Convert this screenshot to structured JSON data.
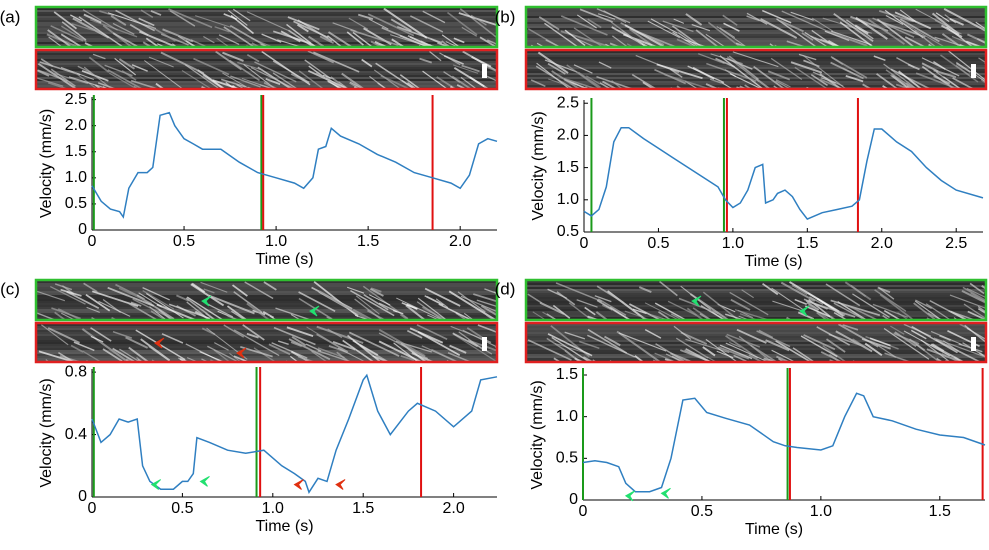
{
  "chart_data": [
    {
      "type": "line",
      "panel": "(a)",
      "xlabel": "Time (s)",
      "ylabel": "Velocity (mm/s)",
      "color": "#2f7fc1",
      "x": [
        0,
        0.05,
        0.1,
        0.15,
        0.17,
        0.2,
        0.25,
        0.3,
        0.33,
        0.37,
        0.42,
        0.45,
        0.5,
        0.55,
        0.6,
        0.7,
        0.8,
        0.9,
        1.0,
        1.1,
        1.15,
        1.2,
        1.23,
        1.27,
        1.3,
        1.35,
        1.45,
        1.55,
        1.65,
        1.75,
        1.85,
        1.95,
        2.0,
        2.05,
        2.1,
        2.15,
        2.2
      ],
      "values": [
        0.85,
        0.55,
        0.4,
        0.35,
        0.25,
        0.8,
        1.1,
        1.1,
        1.2,
        2.2,
        2.25,
        2.0,
        1.75,
        1.65,
        1.55,
        1.55,
        1.3,
        1.1,
        1.0,
        0.9,
        0.8,
        1.0,
        1.55,
        1.6,
        1.95,
        1.8,
        1.65,
        1.45,
        1.3,
        1.1,
        1.0,
        0.9,
        0.8,
        1.05,
        1.65,
        1.75,
        1.7
      ],
      "xlim": [
        0,
        2.2
      ],
      "ylim": [
        0,
        2.55
      ],
      "xticks": [
        0,
        0.5,
        {
          "value": 1,
          "label": "1.0"
        },
        1.5,
        {
          "value": 2,
          "label": "2.0"
        }
      ],
      "yticks": [
        0,
        0.5,
        {
          "value": 1,
          "label": "1.0"
        },
        1.5,
        {
          "value": 2,
          "label": "2.0"
        },
        2.5
      ],
      "markers": [
        {
          "x": 0.01,
          "color": "#1a9a1a"
        },
        {
          "x": 0.92,
          "color": "#1a9a1a"
        },
        {
          "x": 0.93,
          "color": "#e01010"
        },
        {
          "x": 1.85,
          "color": "#e01010"
        }
      ],
      "arrows": []
    },
    {
      "type": "line",
      "panel": "(b)",
      "xlabel": "Time (s)",
      "ylabel": "Velocity (mm/s)",
      "color": "#2f7fc1",
      "x": [
        0,
        0.05,
        0.1,
        0.15,
        0.2,
        0.25,
        0.3,
        0.4,
        0.5,
        0.6,
        0.7,
        0.8,
        0.9,
        0.95,
        1.0,
        1.05,
        1.1,
        1.15,
        1.2,
        1.22,
        1.27,
        1.3,
        1.35,
        1.4,
        1.45,
        1.5,
        1.6,
        1.7,
        1.8,
        1.85,
        1.9,
        1.95,
        2.0,
        2.1,
        2.2,
        2.3,
        2.4,
        2.5,
        2.68
      ],
      "values": [
        0.82,
        0.75,
        0.85,
        1.2,
        1.9,
        2.12,
        2.12,
        1.95,
        1.8,
        1.65,
        1.5,
        1.35,
        1.2,
        1.0,
        0.88,
        0.95,
        1.15,
        1.5,
        1.55,
        0.95,
        1.0,
        1.1,
        1.15,
        1.05,
        0.85,
        0.7,
        0.8,
        0.85,
        0.9,
        1.0,
        1.6,
        2.1,
        2.1,
        1.9,
        1.75,
        1.5,
        1.3,
        1.15,
        1.03
      ],
      "xlim": [
        0,
        2.68
      ],
      "ylim": [
        0.5,
        2.55
      ],
      "xticks": [
        0,
        0.5,
        {
          "value": 1,
          "label": "1.0"
        },
        1.5,
        {
          "value": 2,
          "label": "2.0"
        },
        2.5
      ],
      "yticks": [
        0.5,
        {
          "value": 1,
          "label": "1.0"
        },
        1.5,
        {
          "value": 2,
          "label": "2.0"
        },
        2.5
      ],
      "markers": [
        {
          "x": 0.05,
          "color": "#1a9a1a"
        },
        {
          "x": 0.94,
          "color": "#1a9a1a"
        },
        {
          "x": 0.96,
          "color": "#e01010"
        },
        {
          "x": 1.84,
          "color": "#e01010"
        }
      ],
      "arrows": []
    },
    {
      "type": "line",
      "panel": "(c)",
      "xlabel": "Time (s)",
      "ylabel": "Velocity (mm/s)",
      "color": "#2f7fc1",
      "x": [
        0,
        0.05,
        0.1,
        0.15,
        0.2,
        0.25,
        0.28,
        0.32,
        0.38,
        0.45,
        0.5,
        0.53,
        0.56,
        0.58,
        0.65,
        0.75,
        0.85,
        0.95,
        1.05,
        1.12,
        1.18,
        1.2,
        1.25,
        1.3,
        1.35,
        1.42,
        1.5,
        1.52,
        1.58,
        1.65,
        1.75,
        1.8,
        1.9,
        2.0,
        2.1,
        2.15,
        2.24
      ],
      "values": [
        0.5,
        0.35,
        0.4,
        0.5,
        0.48,
        0.5,
        0.2,
        0.1,
        0.05,
        0.05,
        0.1,
        0.1,
        0.15,
        0.38,
        0.35,
        0.3,
        0.28,
        0.3,
        0.2,
        0.15,
        0.1,
        0.03,
        0.12,
        0.1,
        0.3,
        0.5,
        0.75,
        0.78,
        0.55,
        0.4,
        0.55,
        0.6,
        0.55,
        0.45,
        0.55,
        0.75,
        0.77
      ],
      "xlim": [
        0,
        2.24
      ],
      "ylim": [
        0,
        0.82
      ],
      "xticks": [
        0,
        0.5,
        {
          "value": 1,
          "label": "1.0"
        },
        1.5,
        {
          "value": 2,
          "label": "2.0"
        }
      ],
      "yticks": [
        0,
        0.4,
        0.8
      ],
      "markers": [
        {
          "x": 0.01,
          "color": "#1a9a1a"
        },
        {
          "x": 0.91,
          "color": "#1a9a1a"
        },
        {
          "x": 0.93,
          "color": "#e01010"
        },
        {
          "x": 1.82,
          "color": "#e01010"
        }
      ],
      "arrows": [
        {
          "x": 0.33,
          "y": 0.08,
          "color": "#22e070"
        },
        {
          "x": 0.6,
          "y": 0.1,
          "color": "#22e070"
        },
        {
          "x": 1.12,
          "y": 0.08,
          "color": "#e03010"
        },
        {
          "x": 1.35,
          "y": 0.08,
          "color": "#e03010"
        }
      ]
    },
    {
      "type": "line",
      "panel": "(d)",
      "xlabel": "Time (s)",
      "ylabel": "Velocity (mm/s)",
      "color": "#2f7fc1",
      "x": [
        0,
        0.05,
        0.1,
        0.15,
        0.18,
        0.22,
        0.28,
        0.33,
        0.37,
        0.42,
        0.47,
        0.52,
        0.6,
        0.7,
        0.8,
        0.85,
        0.9,
        1.0,
        1.05,
        1.1,
        1.15,
        1.18,
        1.22,
        1.3,
        1.4,
        1.5,
        1.6,
        1.69
      ],
      "values": [
        0.45,
        0.47,
        0.45,
        0.4,
        0.2,
        0.1,
        0.1,
        0.15,
        0.5,
        1.2,
        1.22,
        1.05,
        0.98,
        0.9,
        0.7,
        0.65,
        0.63,
        0.6,
        0.65,
        1.0,
        1.28,
        1.25,
        1.0,
        0.95,
        0.85,
        0.78,
        0.75,
        0.66
      ],
      "xlim": [
        0,
        1.69
      ],
      "ylim": [
        0,
        1.56
      ],
      "xticks": [
        0,
        0.5,
        {
          "value": 1,
          "label": "1.0"
        },
        1.5
      ],
      "yticks": [
        0,
        0.5,
        {
          "value": 1,
          "label": "1.0"
        },
        1.5
      ],
      "markers": [
        {
          "x": 0.0,
          "color": "#1a9a1a"
        },
        {
          "x": 0.86,
          "color": "#1a9a1a"
        },
        {
          "x": 0.87,
          "color": "#e01010"
        },
        {
          "x": 1.68,
          "color": "#e01010"
        }
      ],
      "arrows": [
        {
          "x": 0.18,
          "y": 0.05,
          "color": "#22e070"
        },
        {
          "x": 0.33,
          "y": 0.08,
          "color": "#22e070"
        }
      ]
    }
  ]
}
